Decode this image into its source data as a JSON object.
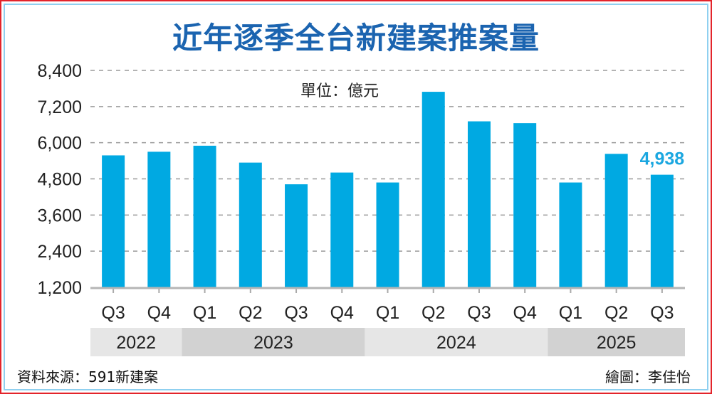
{
  "chart_data": {
    "type": "bar",
    "title": "近年逐季全台新建案推案量",
    "unit_label": "單位：億元",
    "xlabel": "",
    "ylabel": "",
    "ylim": [
      1200,
      8400
    ],
    "yticks": [
      1200,
      2400,
      3600,
      4800,
      6000,
      7200,
      8400
    ],
    "ytick_labels": [
      "1,200",
      "2,400",
      "3,600",
      "4,800",
      "6,000",
      "7,200",
      "8,400"
    ],
    "grid": true,
    "categories": [
      "Q3",
      "Q4",
      "Q1",
      "Q2",
      "Q3",
      "Q4",
      "Q1",
      "Q2",
      "Q3",
      "Q4",
      "Q1",
      "Q2",
      "Q3"
    ],
    "years": [
      {
        "label": "2022",
        "span": 2
      },
      {
        "label": "2023",
        "span": 4
      },
      {
        "label": "2024",
        "span": 4
      },
      {
        "label": "2025",
        "span": 3
      }
    ],
    "values": [
      5580,
      5700,
      5900,
      5340,
      4620,
      5010,
      4680,
      7690,
      6710,
      6650,
      4680,
      5630,
      4938
    ],
    "data_labels": [
      {
        "index": 12,
        "text": "4,938"
      }
    ],
    "bar_color": "#00a9e2",
    "label_color": "#1ba7e0",
    "title_color": "#1b64b0"
  },
  "footer": {
    "source": "資料來源：591新建案",
    "credit": "繪圖：李佳怡"
  }
}
